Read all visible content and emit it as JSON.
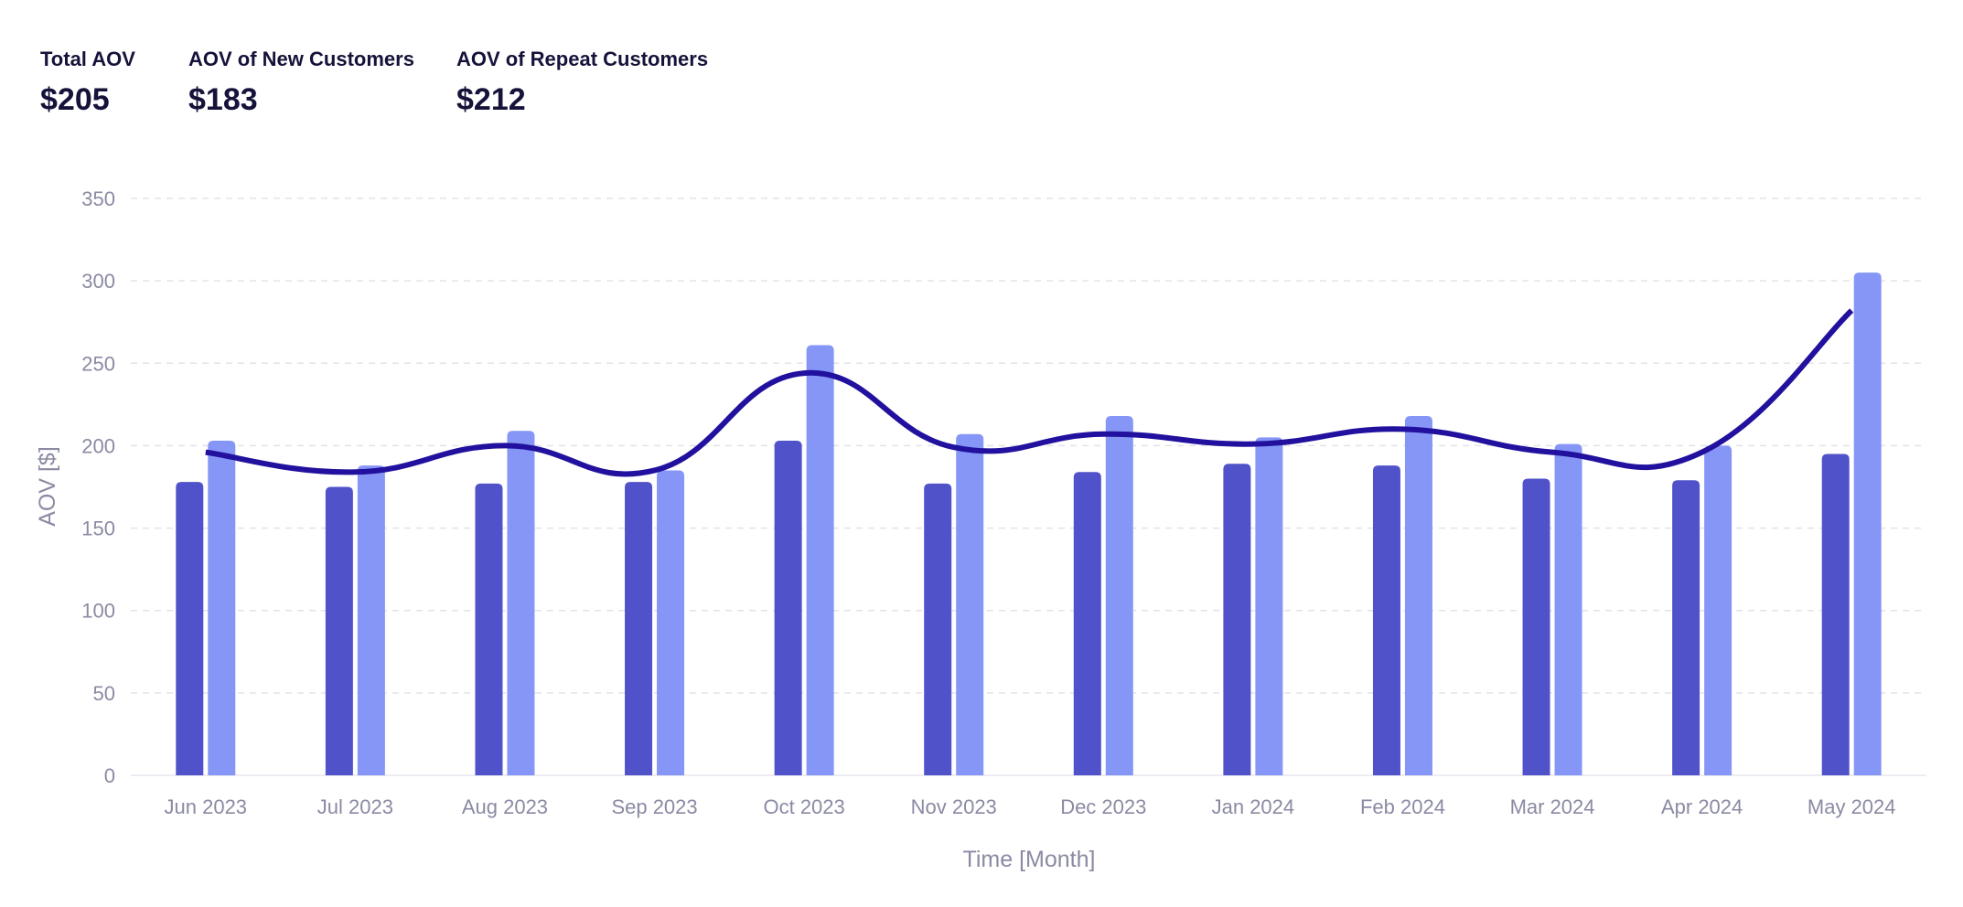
{
  "kpis": [
    {
      "label": "Total AOV",
      "value": "$205"
    },
    {
      "label": "AOV of New Customers",
      "value": "$183"
    },
    {
      "label": "AOV of Repeat Customers",
      "value": "$212"
    }
  ],
  "chart_data": {
    "type": "bar",
    "categories": [
      "Jun 2023",
      "Jul 2023",
      "Aug 2023",
      "Sep 2023",
      "Oct 2023",
      "Nov 2023",
      "Dec 2023",
      "Jan 2024",
      "Feb 2024",
      "Mar 2024",
      "Apr 2024",
      "May 2024"
    ],
    "series": [
      {
        "kind": "bar",
        "color": "#5052c9",
        "values": [
          178,
          175,
          177,
          178,
          203,
          177,
          184,
          189,
          188,
          180,
          179,
          195
        ]
      },
      {
        "kind": "bar",
        "color": "#8696f6",
        "values": [
          203,
          188,
          209,
          185,
          261,
          207,
          218,
          205,
          218,
          201,
          200,
          305
        ]
      },
      {
        "kind": "line",
        "color": "#21119e",
        "values": [
          196,
          184,
          200,
          185,
          244,
          199,
          207,
          201,
          210,
          196,
          196,
          282
        ]
      }
    ],
    "xlabel": "Time [Month]",
    "ylabel": "AOV [$]",
    "yticks": [
      0,
      50,
      100,
      150,
      200,
      250,
      300,
      350
    ],
    "ylim": [
      0,
      350
    ],
    "grid": true,
    "legend": "none"
  }
}
